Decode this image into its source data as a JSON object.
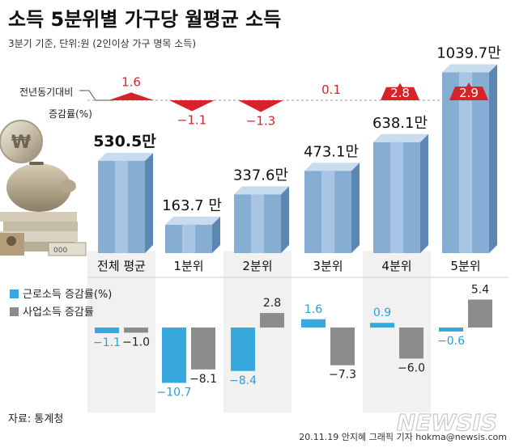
{
  "title": "소득 5분위별 가구당 월평균 소득",
  "subtitle": "3분기 기준, 단위:원 (2인이상 가구 명목 소득)",
  "yoy_label_line1": "전년동기대비",
  "yoy_label_line2": "증감률(%)",
  "legend": {
    "labor": "근로소득 증감률(%)",
    "business": "사업소득 증감률"
  },
  "source": "자료: 통계청",
  "credit": "20.11.19 안지혜 그래픽 기자 hokma@newsis.com",
  "watermark": "NEWSIS",
  "colors": {
    "bar_face": "#86aed3",
    "bar_stripe": "#a8c6e3",
    "bar_side": "#5d87b3",
    "bar_top": "#c9dcee",
    "labor": "#38a9de",
    "business": "#8c8c8c",
    "marker": "#d9232b",
    "category_band": "#f1f1f1"
  },
  "chart_data": {
    "type": "bar",
    "categories": [
      "전체 평균",
      "1분위",
      "2분위",
      "3분위",
      "4분위",
      "5분위"
    ],
    "income": {
      "values": [
        530.5,
        163.7,
        337.6,
        473.1,
        638.1,
        1039.7
      ],
      "labels": [
        "530.5만",
        "163.7 만",
        "337.6만",
        "473.1만",
        "638.1만",
        "1039.7만"
      ]
    },
    "yoy_change": {
      "values": [
        1.6,
        -1.1,
        -1.3,
        0.1,
        2.8,
        2.9
      ],
      "labels": [
        "1.6",
        "-1.1",
        "-1.3",
        "0.1",
        "2.8",
        "2.9"
      ]
    },
    "series": [
      {
        "name": "근로소득 증감률(%)",
        "values": [
          -1.1,
          -10.7,
          -8.4,
          1.6,
          0.9,
          -0.6
        ],
        "labels": [
          "-1.1",
          "-10.7",
          "-8.4",
          "1.6",
          "0.9",
          "-0.6"
        ]
      },
      {
        "name": "사업소득 증감률",
        "values": [
          -1.0,
          -8.1,
          2.8,
          -7.3,
          -6.0,
          5.4
        ],
        "labels": [
          "-1.0",
          "-8.1",
          "2.8",
          "-7.3",
          "-6.0",
          "5.4"
        ]
      }
    ]
  }
}
